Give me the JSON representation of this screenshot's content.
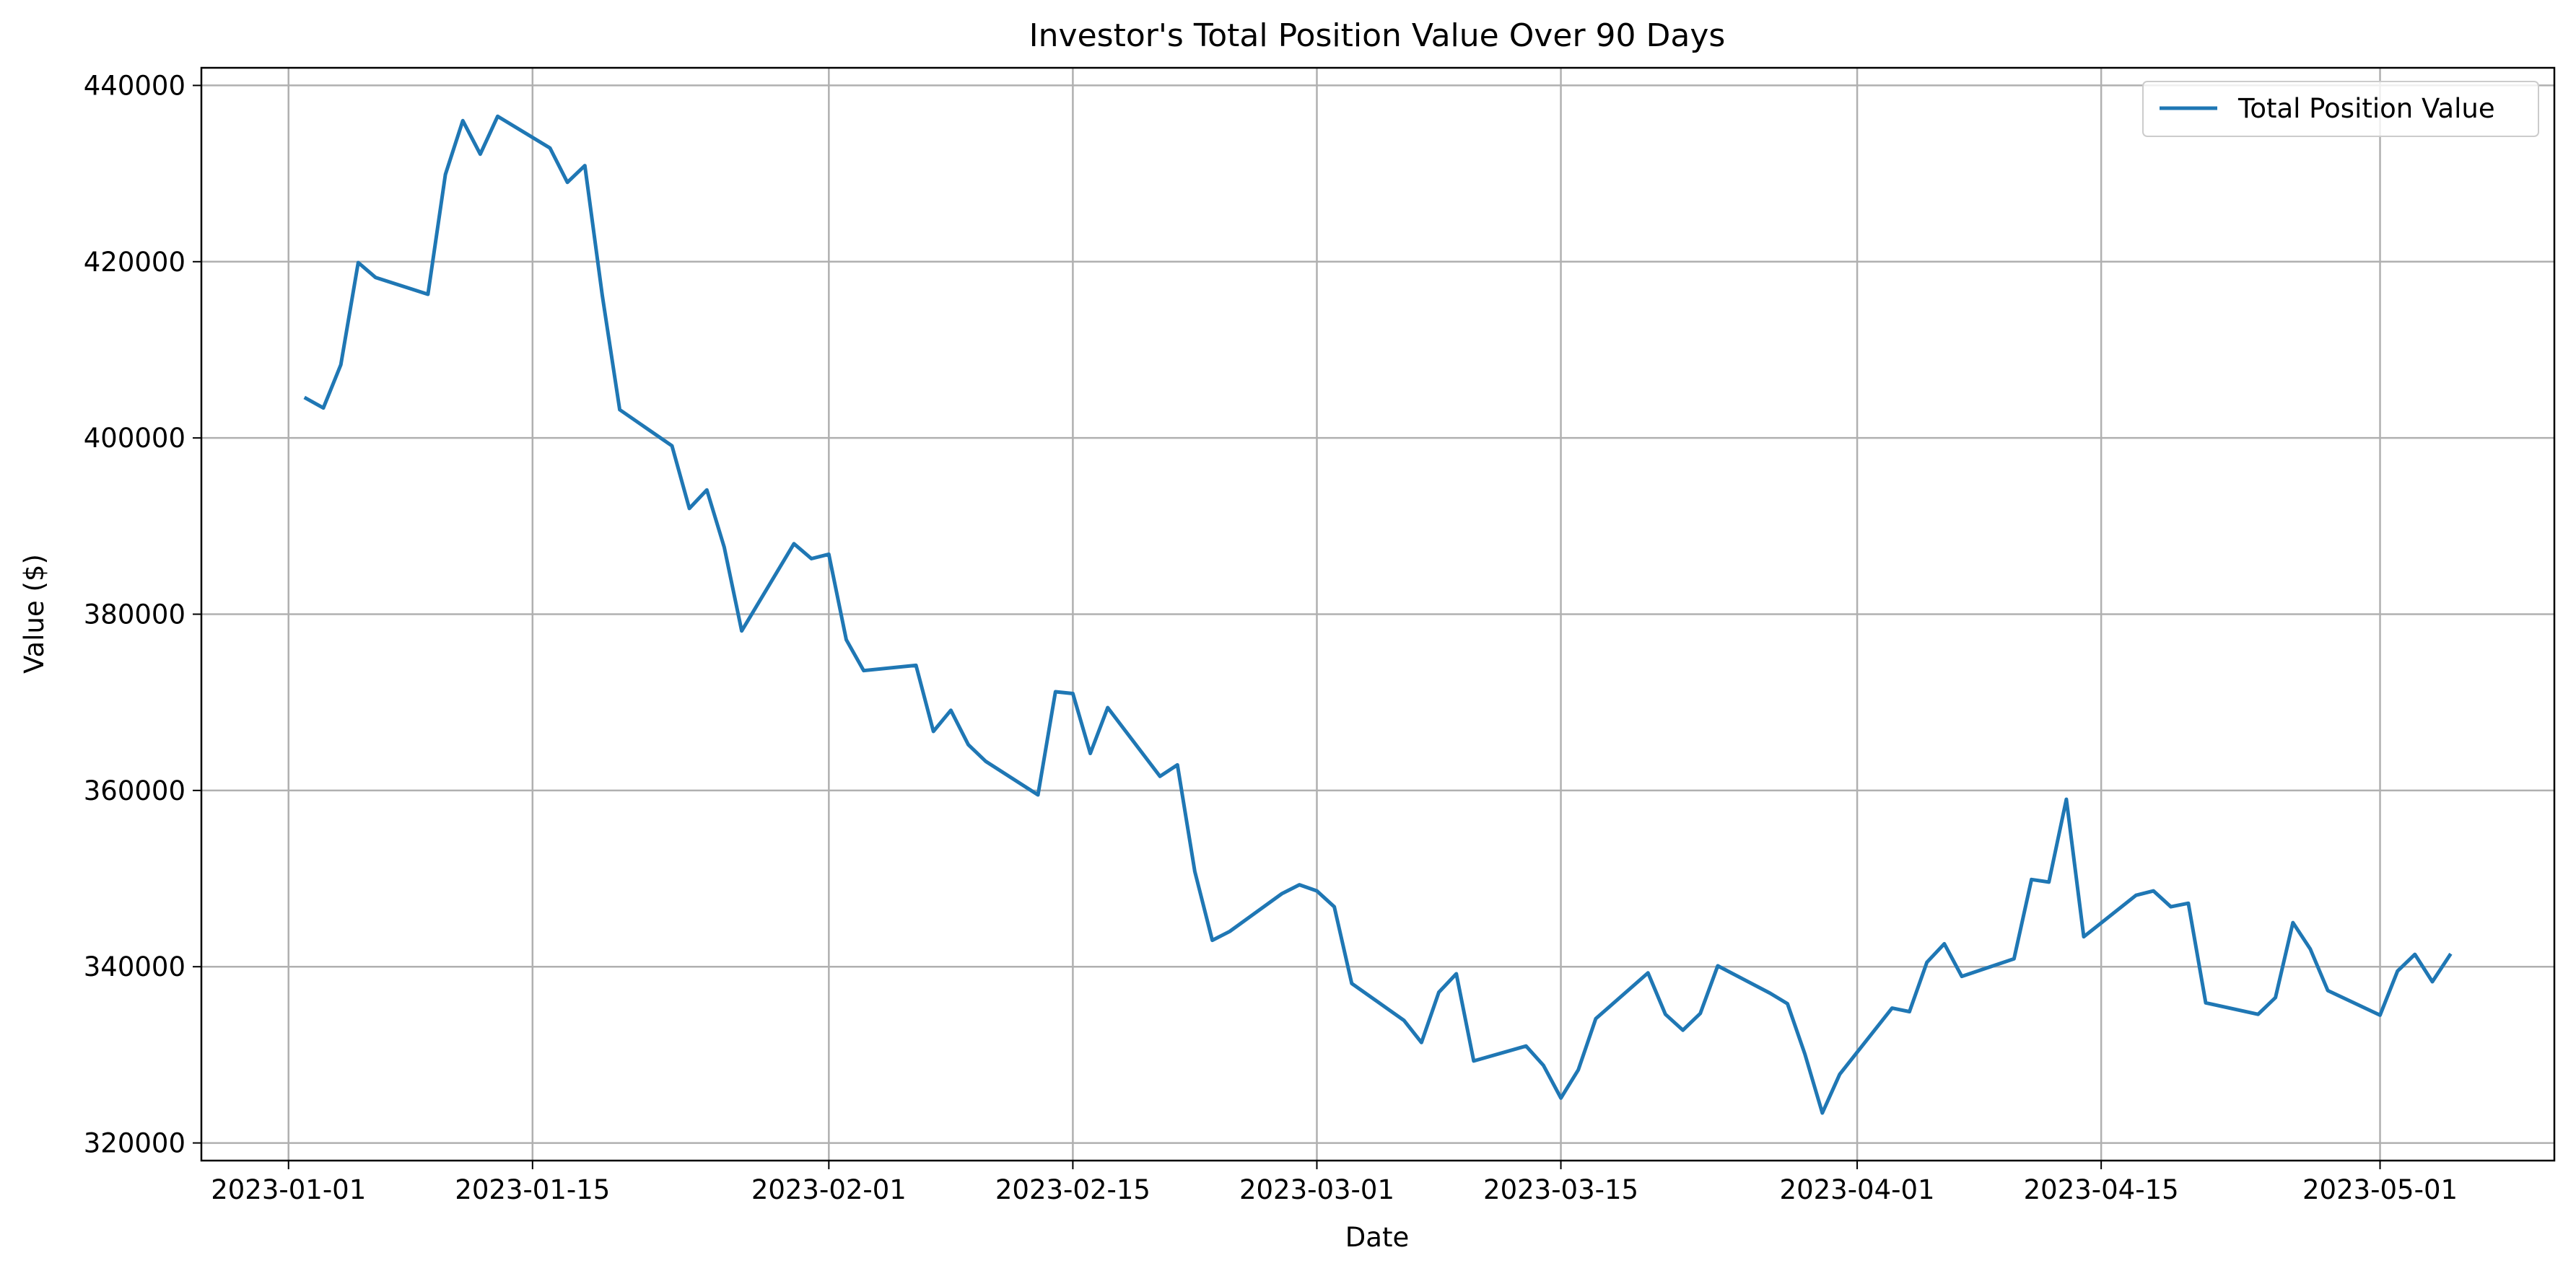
{
  "chart_data": {
    "type": "line",
    "title": "Investor's Total Position Value Over 90 Days",
    "xlabel": "Date",
    "ylabel": "Value ($)",
    "xlim": [
      "2022-12-27",
      "2023-05-11"
    ],
    "ylim": [
      318000,
      442000
    ],
    "x_ticks": [
      "2023-01-01",
      "2023-01-15",
      "2023-02-01",
      "2023-02-15",
      "2023-03-01",
      "2023-03-15",
      "2023-04-01",
      "2023-04-15",
      "2023-05-01"
    ],
    "y_ticks": [
      320000,
      340000,
      360000,
      380000,
      400000,
      420000,
      440000
    ],
    "grid": true,
    "legend_position": "top-right",
    "series": [
      {
        "name": "Total Position Value",
        "color": "#1f77b4",
        "x": [
          "2023-01-02",
          "2023-01-03",
          "2023-01-04",
          "2023-01-05",
          "2023-01-06",
          "2023-01-09",
          "2023-01-10",
          "2023-01-11",
          "2023-01-12",
          "2023-01-13",
          "2023-01-16",
          "2023-01-17",
          "2023-01-18",
          "2023-01-19",
          "2023-01-20",
          "2023-01-23",
          "2023-01-24",
          "2023-01-25",
          "2023-01-26",
          "2023-01-27",
          "2023-01-30",
          "2023-01-31",
          "2023-02-01",
          "2023-02-02",
          "2023-02-03",
          "2023-02-06",
          "2023-02-07",
          "2023-02-08",
          "2023-02-09",
          "2023-02-10",
          "2023-02-13",
          "2023-02-14",
          "2023-02-15",
          "2023-02-16",
          "2023-02-17",
          "2023-02-20",
          "2023-02-21",
          "2023-02-22",
          "2023-02-23",
          "2023-02-24",
          "2023-02-27",
          "2023-02-28",
          "2023-03-01",
          "2023-03-02",
          "2023-03-03",
          "2023-03-06",
          "2023-03-07",
          "2023-03-08",
          "2023-03-09",
          "2023-03-10",
          "2023-03-13",
          "2023-03-14",
          "2023-03-15",
          "2023-03-16",
          "2023-03-17",
          "2023-03-20",
          "2023-03-21",
          "2023-03-22",
          "2023-03-23",
          "2023-03-24",
          "2023-03-27",
          "2023-03-28",
          "2023-03-29",
          "2023-03-30",
          "2023-03-31",
          "2023-04-03",
          "2023-04-04",
          "2023-04-05",
          "2023-04-06",
          "2023-04-07",
          "2023-04-10",
          "2023-04-11",
          "2023-04-12",
          "2023-04-13",
          "2023-04-14",
          "2023-04-17",
          "2023-04-18",
          "2023-04-19",
          "2023-04-20",
          "2023-04-21",
          "2023-04-24",
          "2023-04-25",
          "2023-04-26",
          "2023-04-27",
          "2023-04-28",
          "2023-05-01",
          "2023-05-02",
          "2023-05-03",
          "2023-05-04",
          "2023-05-05"
        ],
        "values": [
          404500,
          403400,
          408300,
          419900,
          418200,
          416300,
          429900,
          436000,
          432200,
          436500,
          432900,
          429000,
          430900,
          416200,
          403200,
          399100,
          392000,
          394100,
          387600,
          378100,
          388000,
          386300,
          386800,
          377100,
          373600,
          374200,
          366700,
          369100,
          365200,
          363300,
          359500,
          371200,
          371000,
          364200,
          369400,
          361600,
          362900,
          350800,
          343000,
          344000,
          348300,
          349300,
          348600,
          346800,
          338100,
          333900,
          331400,
          337100,
          339200,
          329300,
          331000,
          328800,
          325100,
          328300,
          334100,
          339300,
          334600,
          332800,
          334700,
          340100,
          337000,
          335800,
          330100,
          323400,
          327800,
          335300,
          334900,
          340500,
          342600,
          338900,
          340900,
          349900,
          349600,
          359000,
          343400,
          348100,
          348600,
          346800,
          347200,
          335900,
          334600,
          336500,
          345000,
          342000,
          337300,
          334500,
          339500,
          341400,
          338300,
          341300
        ]
      }
    ]
  }
}
